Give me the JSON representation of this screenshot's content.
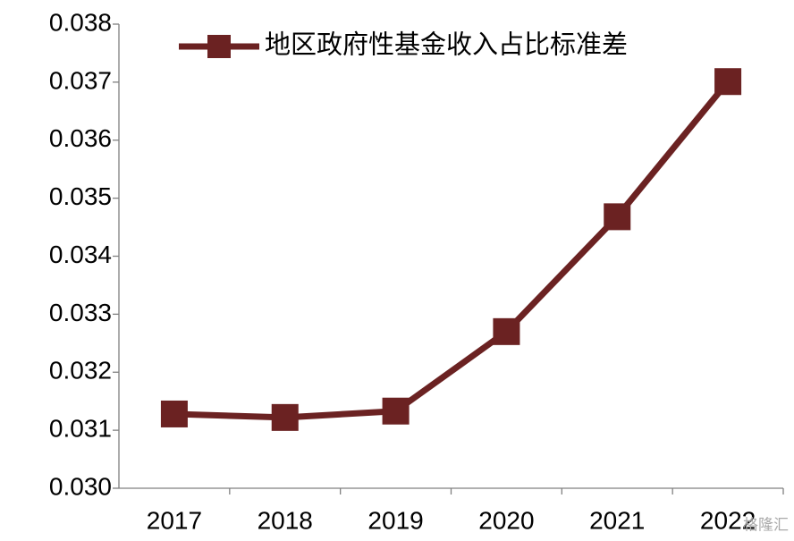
{
  "chart_data": {
    "type": "line",
    "categories": [
      "2017",
      "2018",
      "2019",
      "2020",
      "2021",
      "2022"
    ],
    "series": [
      {
        "name": "地区政府性基金收入占比标准差",
        "color": "#6b2222",
        "values": [
          0.03128,
          0.03122,
          0.03133,
          0.0327,
          0.03468,
          0.03701
        ]
      }
    ],
    "ylim": [
      0.03,
      0.038
    ],
    "yticks": [
      {
        "value": 0.03,
        "label": "0.030"
      },
      0.031,
      0.032,
      0.033,
      0.034,
      0.035,
      0.036,
      0.037,
      0.038
    ],
    "legend": "top",
    "watermark": "格隆汇"
  }
}
